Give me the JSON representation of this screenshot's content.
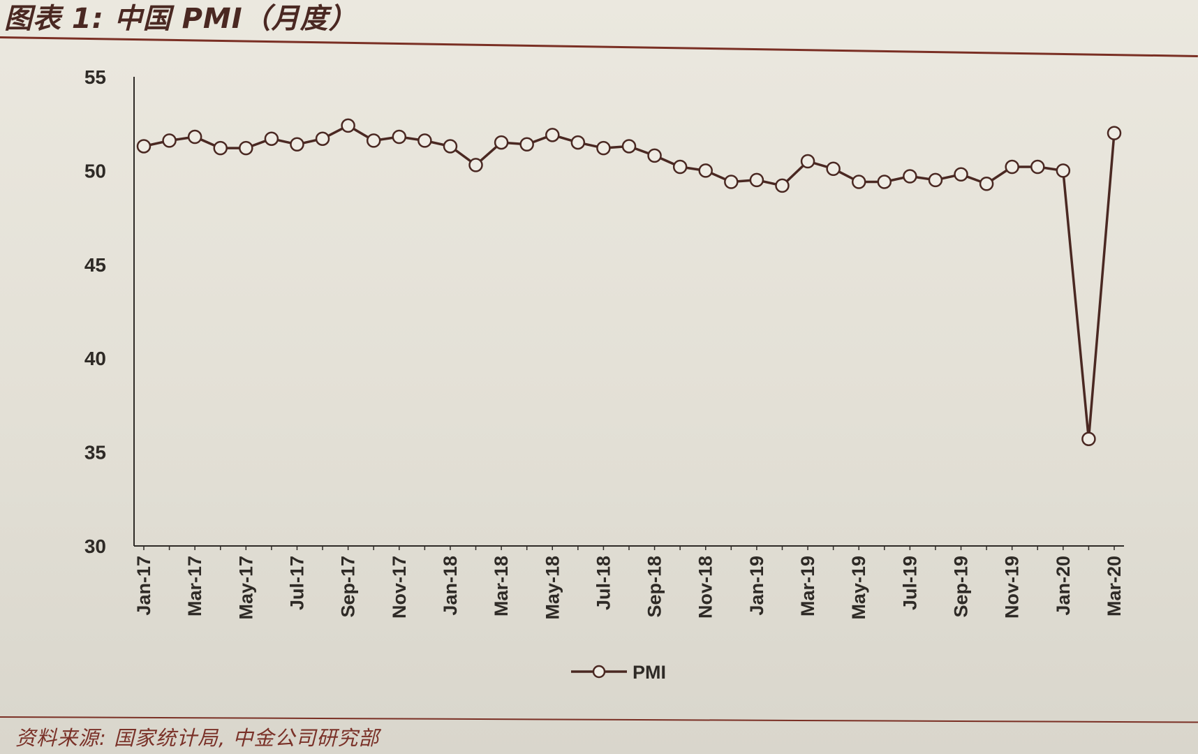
{
  "title": "图表 1:  中国 PMI（月度）",
  "source": "资料来源: 国家统计局, 中金公司研究部",
  "colors": {
    "line": "#4a2822",
    "marker_fill": "#efece4",
    "rule": "#7a2f24"
  },
  "chart_data": {
    "type": "line",
    "title": "",
    "xlabel": "",
    "ylabel": "",
    "ylim": [
      30,
      55
    ],
    "yticks": [
      30,
      35,
      40,
      45,
      50,
      55
    ],
    "grid": false,
    "legend_position": "bottom",
    "x": [
      "Jan-17",
      "Feb-17",
      "Mar-17",
      "Apr-17",
      "May-17",
      "Jun-17",
      "Jul-17",
      "Aug-17",
      "Sep-17",
      "Oct-17",
      "Nov-17",
      "Dec-17",
      "Jan-18",
      "Feb-18",
      "Mar-18",
      "Apr-18",
      "May-18",
      "Jun-18",
      "Jul-18",
      "Aug-18",
      "Sep-18",
      "Oct-18",
      "Nov-18",
      "Dec-18",
      "Jan-19",
      "Feb-19",
      "Mar-19",
      "Apr-19",
      "May-19",
      "Jun-19",
      "Jul-19",
      "Aug-19",
      "Sep-19",
      "Oct-19",
      "Nov-19",
      "Dec-19",
      "Jan-20",
      "Feb-20",
      "Mar-20"
    ],
    "xtick_labels": [
      "Jan-17",
      "Mar-17",
      "May-17",
      "Jul-17",
      "Sep-17",
      "Nov-17",
      "Jan-18",
      "Mar-18",
      "May-18",
      "Jul-18",
      "Sep-18",
      "Nov-18",
      "Jan-19",
      "Mar-19",
      "May-19",
      "Jul-19",
      "Sep-19",
      "Nov-19",
      "Jan-20",
      "Mar-20"
    ],
    "series": [
      {
        "name": "PMI",
        "marker": "open-circle",
        "values": [
          51.3,
          51.6,
          51.8,
          51.2,
          51.2,
          51.7,
          51.4,
          51.7,
          52.4,
          51.6,
          51.8,
          51.6,
          51.3,
          50.3,
          51.5,
          51.4,
          51.9,
          51.5,
          51.2,
          51.3,
          50.8,
          50.2,
          50.0,
          49.4,
          49.5,
          49.2,
          50.5,
          50.1,
          49.4,
          49.4,
          49.7,
          49.5,
          49.8,
          49.3,
          50.2,
          50.2,
          50.0,
          35.7,
          52.0
        ]
      }
    ]
  }
}
